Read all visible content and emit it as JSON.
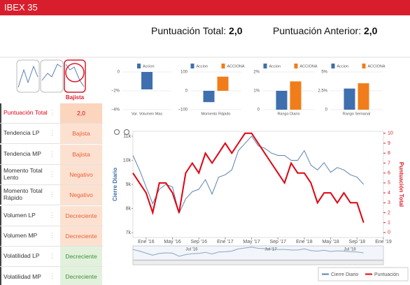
{
  "header": {
    "title": "IBEX 35"
  },
  "scores": {
    "total_label": "Puntuación Total:",
    "total_value": "2,0",
    "previous_label": "Puntuación Anterior:",
    "previous_value": "2,0"
  },
  "thumbnail": {
    "label": "Bajista"
  },
  "indicators": [
    {
      "label": "Puntuación Total",
      "value": "2,0",
      "color": "#fbd5bd",
      "text_color": "#e0001b"
    },
    {
      "label": "Tendencia LP",
      "value": "Bajista",
      "color": "#fde1d0",
      "text_color": "#e8603c"
    },
    {
      "label": "Tendencia MP",
      "value": "Bajista",
      "color": "#fde1d0",
      "text_color": "#e8603c"
    },
    {
      "label": "Momento Total Lento",
      "value": "Negativo",
      "color": "#fde1d0",
      "text_color": "#e8603c"
    },
    {
      "label": "Momento Total Rápido",
      "value": "Negativo",
      "color": "#fde1d0",
      "text_color": "#e8603c"
    },
    {
      "label": "Volumen LP",
      "value": "Decreciente",
      "color": "#fde1d0",
      "text_color": "#e8603c"
    },
    {
      "label": "Volumen MP",
      "value": "Decreciente",
      "color": "#fde1d0",
      "text_color": "#e8603c"
    },
    {
      "label": "Volatilidad LP",
      "value": "Decreciente",
      "color": "#e2f1dc",
      "text_color": "#3f8f3f"
    },
    {
      "label": "Volatilidad MP",
      "value": "Decreciente",
      "color": "#e2f1dc",
      "text_color": "#3f8f3f"
    }
  ],
  "chart_data": [
    {
      "type": "bar",
      "categories": [
        "Var. Volumen Mas"
      ],
      "series": [
        {
          "name": "Accion",
          "color": "#3f6fae",
          "values": [
            -1.85
          ]
        }
      ],
      "ylim": [
        -4,
        0
      ],
      "yticks": [
        0,
        {
          "value": -2,
          "label": "−2%"
        },
        {
          "value": -4,
          "label": "−4%"
        }
      ]
    },
    {
      "type": "bar",
      "categories": [
        "Momento Rápido"
      ],
      "series": [
        {
          "name": "Accion",
          "color": "#3f6fae",
          "values": [
            -60
          ]
        },
        {
          "name": "ACCIONA",
          "color": "#f07d1a",
          "values": [
            75
          ]
        }
      ],
      "ylim": [
        -100,
        100
      ],
      "yticks": [
        100,
        0,
        {
          "value": -100,
          "label": "−100"
        }
      ]
    },
    {
      "type": "bar",
      "categories": [
        "Rango Diario"
      ],
      "series": [
        {
          "name": "Accion",
          "color": "#3f6fae",
          "values": [
            1.0
          ]
        },
        {
          "name": "ACCIONA",
          "color": "#f07d1a",
          "values": [
            1.5
          ]
        }
      ],
      "ylim": [
        0,
        2
      ],
      "yticks": [
        {
          "value": 2,
          "label": "2%"
        },
        {
          "value": 1,
          "label": "1%"
        },
        0
      ]
    },
    {
      "type": "bar",
      "categories": [
        "Rango Semanal"
      ],
      "series": [
        {
          "name": "Accion",
          "color": "#3f6fae",
          "values": [
            2.8
          ]
        },
        {
          "name": "ACCIONA",
          "color": "#f07d1a",
          "values": [
            3.5
          ]
        }
      ],
      "ylim": [
        0,
        5
      ],
      "yticks": [
        {
          "value": 5,
          "label": "5%"
        },
        {
          "value": 2.5,
          "label": "2.5%"
        },
        0
      ]
    },
    {
      "type": "line",
      "y_label": "Cierre Diario",
      "y2_label": "Puntuación Total",
      "categories": [
        null,
        null,
        "Ene '16",
        null,
        null,
        null,
        "May '16",
        null,
        null,
        null,
        "Sep '16",
        null,
        null,
        null,
        "Ene '17",
        null,
        null,
        null,
        "May '17",
        null,
        null,
        null,
        "Sep '17",
        null,
        null,
        null,
        "Ene '18",
        null,
        null,
        null,
        "May '18",
        null,
        null,
        null,
        "Sep '18",
        null,
        null,
        null,
        "Ene '19"
      ],
      "series": [
        {
          "name": "Cierre Diario",
          "color": "#5b82ad",
          "values": [
            10200,
            9600,
            8900,
            8200,
            8800,
            9000,
            8900,
            7800,
            8400,
            8700,
            8800,
            9200,
            8600,
            9300,
            9400,
            9600,
            10400,
            10700,
            11000,
            10600,
            10500,
            10300,
            10200,
            10200,
            10000,
            10000,
            10400,
            9800,
            9600,
            9900,
            9500,
            9700,
            9600,
            9400,
            9300,
            9000,
            null,
            null,
            null
          ]
        },
        {
          "name": "Puntuación",
          "color": "#e3000f",
          "axis": "y2",
          "values": [
            6,
            5,
            4,
            2,
            5,
            5,
            4,
            2,
            6,
            7,
            6,
            8,
            7,
            8,
            9,
            8,
            9,
            10,
            10,
            9,
            8,
            7,
            6,
            5,
            7,
            6,
            6,
            5,
            3,
            4,
            4,
            3,
            4,
            3,
            3,
            1,
            null,
            null,
            null
          ]
        }
      ],
      "ylim": [
        6800,
        11200
      ],
      "yticks": [
        {
          "value": 7000,
          "label": "7k"
        },
        {
          "value": 8000,
          "label": "8k"
        },
        {
          "value": 9000,
          "label": "9k"
        },
        {
          "value": 10000,
          "label": "10k"
        },
        {
          "value": 11000,
          "label": "11k"
        }
      ],
      "y2lim": [
        -0.5,
        10.2
      ],
      "y2ticks": [
        0,
        1,
        2,
        3,
        4,
        5,
        6,
        7,
        8,
        9,
        10
      ],
      "navigator_labels": [
        "Jul '16",
        "Jul '17",
        "Jul '18"
      ]
    }
  ]
}
